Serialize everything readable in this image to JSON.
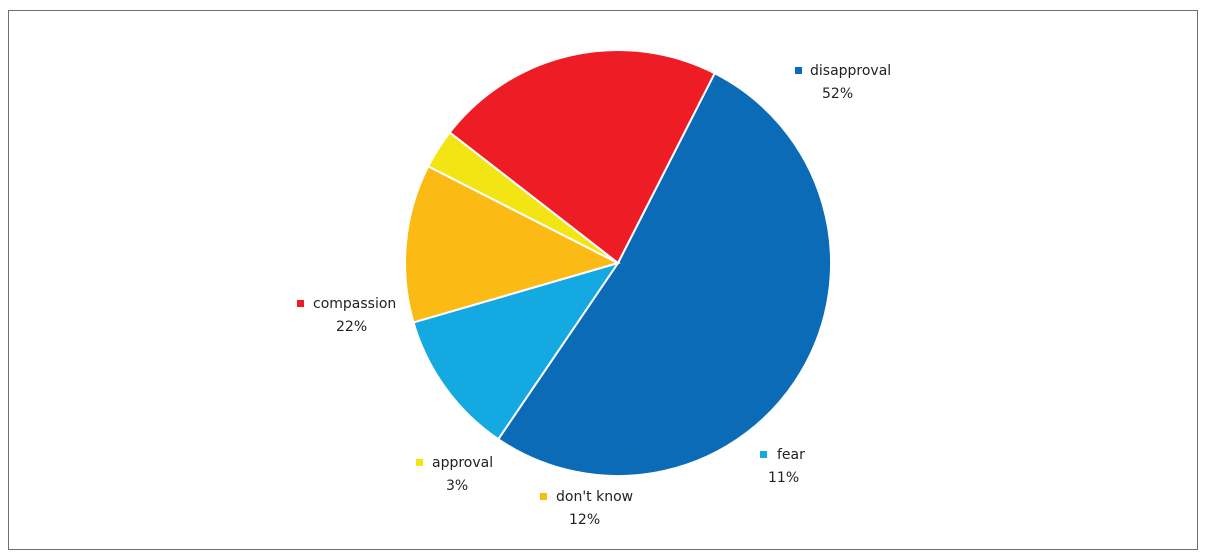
{
  "chart_data": {
    "type": "pie",
    "title": "",
    "start_angle_deg": 297,
    "direction": "clockwise",
    "slices": [
      {
        "label": "disapproval",
        "value": 52,
        "value_label": "52%",
        "color": "#0b6bb7"
      },
      {
        "label": "fear",
        "value": 11,
        "value_label": "11%",
        "color": "#14a9e1"
      },
      {
        "label": "don't know",
        "value": 12,
        "value_label": "12%",
        "color": "#fbbb14"
      },
      {
        "label": "approval",
        "value": 3,
        "value_label": "3%",
        "color": "#f3e414"
      },
      {
        "label": "compassion",
        "value": 22,
        "value_label": "22%",
        "color": "#ee1c25"
      }
    ],
    "legend": "outside labels with colored square markers"
  }
}
